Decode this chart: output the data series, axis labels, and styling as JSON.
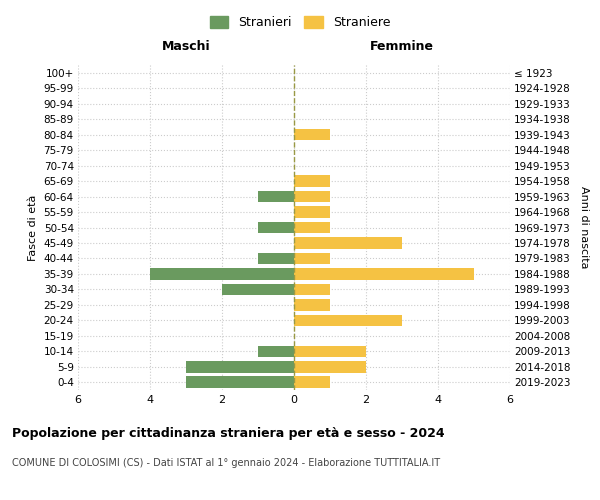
{
  "age_groups": [
    "0-4",
    "5-9",
    "10-14",
    "15-19",
    "20-24",
    "25-29",
    "30-34",
    "35-39",
    "40-44",
    "45-49",
    "50-54",
    "55-59",
    "60-64",
    "65-69",
    "70-74",
    "75-79",
    "80-84",
    "85-89",
    "90-94",
    "95-99",
    "100+"
  ],
  "birth_years": [
    "2019-2023",
    "2014-2018",
    "2009-2013",
    "2004-2008",
    "1999-2003",
    "1994-1998",
    "1989-1993",
    "1984-1988",
    "1979-1983",
    "1974-1978",
    "1969-1973",
    "1964-1968",
    "1959-1963",
    "1954-1958",
    "1949-1953",
    "1944-1948",
    "1939-1943",
    "1934-1938",
    "1929-1933",
    "1924-1928",
    "≤ 1923"
  ],
  "males": [
    3,
    3,
    1,
    0,
    0,
    0,
    2,
    4,
    1,
    0,
    1,
    0,
    1,
    0,
    0,
    0,
    0,
    0,
    0,
    0,
    0
  ],
  "females": [
    1,
    2,
    2,
    0,
    3,
    1,
    1,
    5,
    1,
    3,
    1,
    1,
    1,
    1,
    0,
    0,
    1,
    0,
    0,
    0,
    0
  ],
  "male_color": "#6a9a5f",
  "female_color": "#f5c243",
  "xlim": 6,
  "title_main": "Popolazione per cittadinanza straniera per età e sesso - 2024",
  "title_sub": "COMUNE DI COLOSIMI (CS) - Dati ISTAT al 1° gennaio 2024 - Elaborazione TUTTITALIA.IT",
  "legend_male": "Stranieri",
  "legend_female": "Straniere",
  "xlabel_left": "Maschi",
  "xlabel_right": "Femmine",
  "ylabel_left": "Fasce di età",
  "ylabel_right": "Anni di nascita",
  "bg_color": "#ffffff",
  "grid_color": "#cccccc"
}
